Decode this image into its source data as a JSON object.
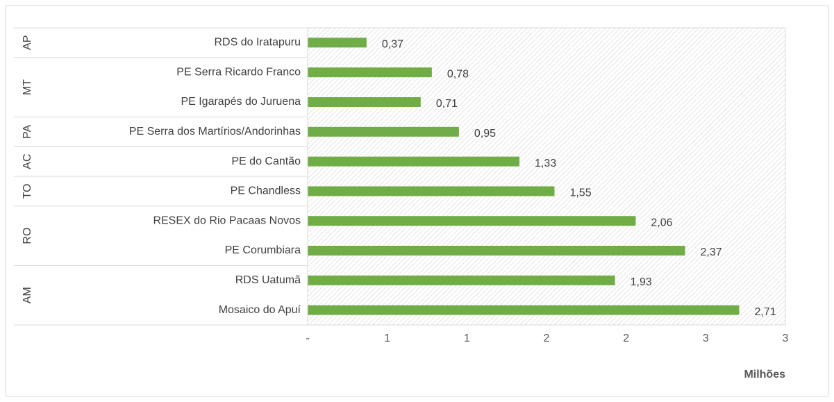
{
  "chart_data": {
    "type": "bar",
    "orientation": "horizontal",
    "color": "#70ad47",
    "groups": [
      {
        "name": "AP",
        "categories": [
          "RDS do Iratapuru"
        ],
        "values": [
          0.37
        ],
        "value_labels": [
          "0,37"
        ]
      },
      {
        "name": "MT",
        "categories": [
          "PE Serra Ricardo Franco",
          "PE Igarapés do Juruena"
        ],
        "values": [
          0.78,
          0.71
        ],
        "value_labels": [
          "0,78",
          "0,71"
        ]
      },
      {
        "name": "PA",
        "categories": [
          "PE Serra dos Martírios/Andorinhas"
        ],
        "values": [
          0.95
        ],
        "value_labels": [
          "0,95"
        ]
      },
      {
        "name": "AC",
        "categories": [
          "PE do Cantão"
        ],
        "values": [
          1.33
        ],
        "value_labels": [
          "1,33"
        ]
      },
      {
        "name": "TO",
        "categories": [
          "PE Chandless"
        ],
        "values": [
          1.55
        ],
        "value_labels": [
          "1,55"
        ]
      },
      {
        "name": "RO",
        "categories": [
          "RESEX do Rio Pacaas Novos",
          "PE Corumbiara"
        ],
        "values": [
          2.06,
          2.37
        ],
        "value_labels": [
          "2,06",
          "2,37"
        ]
      },
      {
        "name": "AM",
        "categories": [
          "RDS Uatumã",
          "Mosaico do Apuí"
        ],
        "values": [
          1.93,
          2.71
        ],
        "value_labels": [
          "1,93",
          "2,71"
        ]
      }
    ],
    "xlim": [
      0,
      3
    ],
    "xticks": [
      {
        "value": 0,
        "label": "-"
      },
      {
        "value": 0.5,
        "label": "1"
      },
      {
        "value": 1,
        "label": "1"
      },
      {
        "value": 1.5,
        "label": "2"
      },
      {
        "value": 2,
        "label": "2"
      },
      {
        "value": 2.5,
        "label": "3"
      },
      {
        "value": 3,
        "label": "3"
      }
    ],
    "x_label": "Milhões"
  }
}
